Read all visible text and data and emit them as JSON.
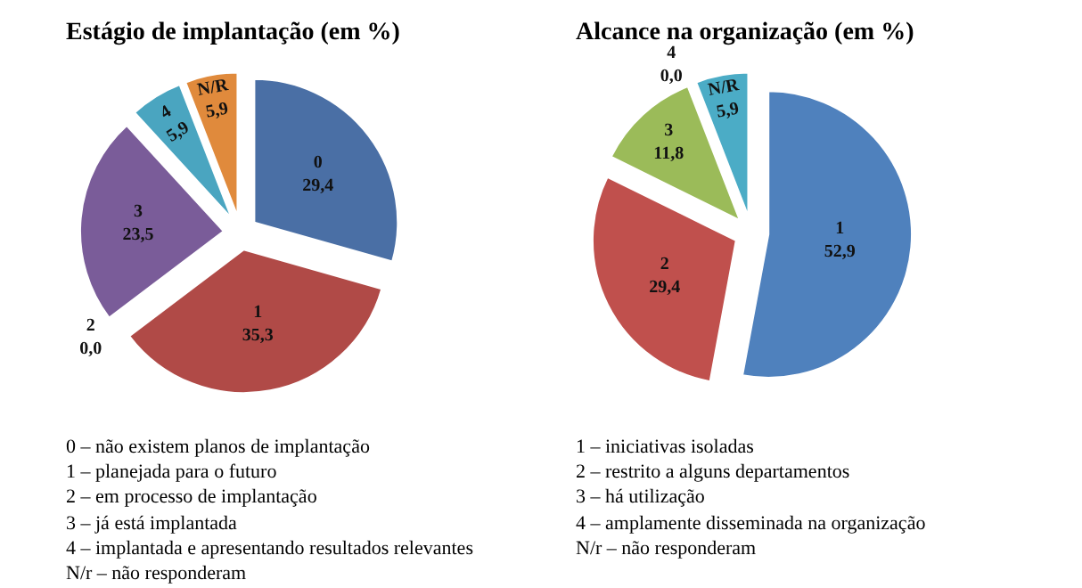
{
  "chart_data": [
    {
      "type": "pie",
      "title": "Estágio de implantação (em %)",
      "categories": [
        "0",
        "1",
        "2",
        "3",
        "4",
        "N/R"
      ],
      "values": [
        29.4,
        35.3,
        0.0,
        23.5,
        5.9,
        5.9
      ],
      "value_labels": [
        "29,4",
        "35,3",
        "0,0",
        "23,5",
        "5,9",
        "5,9"
      ],
      "colors": [
        "#4a6fa5",
        "#b04a47",
        "#8aa04e",
        "#7a5c99",
        "#4aa5c0",
        "#e08a3c"
      ],
      "annotations": [
        "0 – não existem planos de implantação",
        "1 – planejada para o futuro",
        "2 – em processo de implantação",
        "3 – já está implantada",
        "4 – implantada e apresentando resultados relevantes",
        "N/r – não responderam"
      ]
    },
    {
      "type": "pie",
      "title": "Alcance na organização (em %)",
      "categories": [
        "1",
        "2",
        "3",
        "4",
        "N/R"
      ],
      "values": [
        52.9,
        29.4,
        11.8,
        0.0,
        5.9
      ],
      "value_labels": [
        "52,9",
        "29,4",
        "11,8",
        "0,0",
        "5,9"
      ],
      "colors": [
        "#4f81bd",
        "#c0504d",
        "#9bbb59",
        "#7a5c99",
        "#4bacc6"
      ],
      "annotations": [
        "1 – iniciativas isoladas",
        "2 – restrito a alguns departamentos",
        "3 – há utilização",
        "4 – amplamente disseminada na organização",
        "N/r – não responderam"
      ]
    }
  ]
}
